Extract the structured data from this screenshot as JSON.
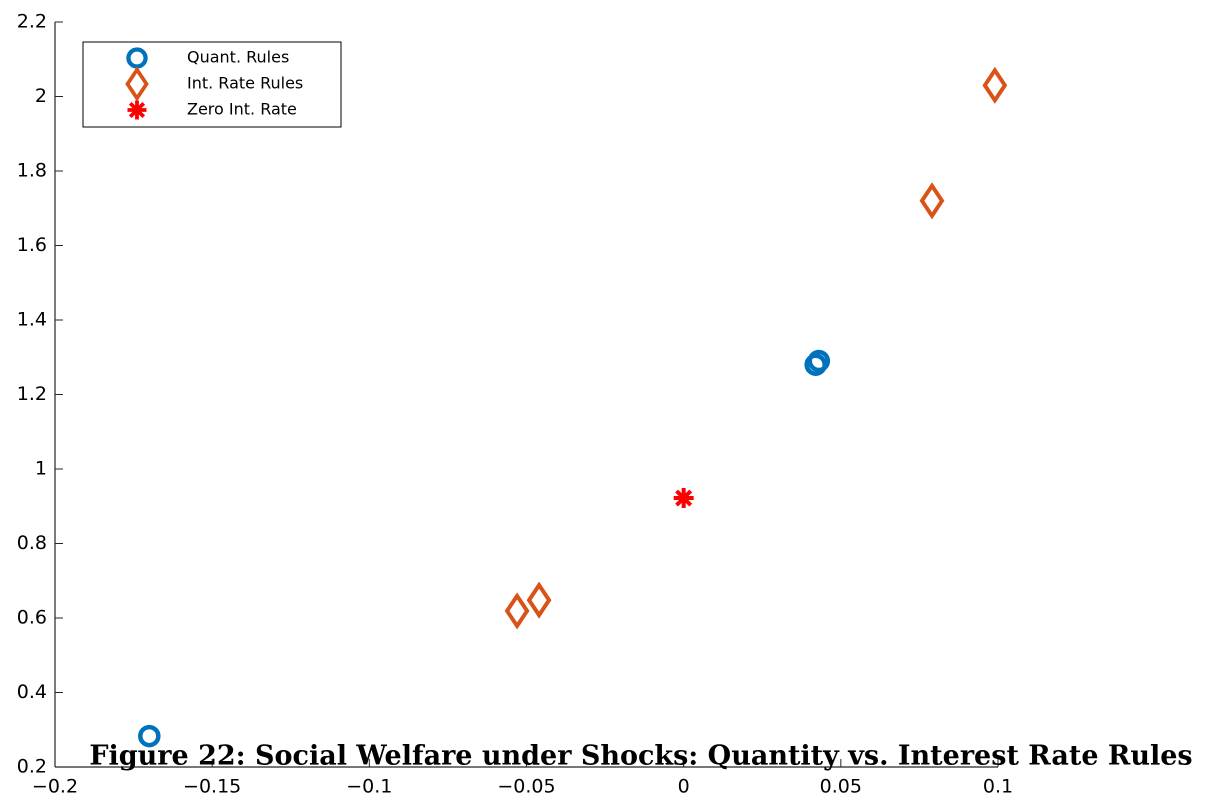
{
  "chart_data": {
    "type": "scatter",
    "caption": "Figure 22: Social Welfare under Shocks: Quantity vs. Interest Rate Rules",
    "xlim": [
      -0.2,
      0.1
    ],
    "xticks": [
      {
        "value": -0.2,
        "label": "−0.2"
      },
      {
        "value": -0.15,
        "label": "−0.15"
      },
      {
        "value": -0.1,
        "label": "−0.1"
      },
      {
        "value": -0.05,
        "label": "−0.05"
      },
      0,
      0.05,
      0.1
    ],
    "ylim": [
      0.2,
      2.2
    ],
    "yticks": [
      0.2,
      0.4,
      0.6,
      0.8,
      1,
      1.2,
      1.4,
      1.6,
      1.8,
      2,
      2.2
    ],
    "legend": "upper left",
    "series": [
      {
        "name": "Quant. Rules",
        "color": "#0072bd",
        "marker": "circle",
        "x": [
          -0.17,
          0.042,
          0.043
        ],
        "values": [
          0.283,
          1.28,
          1.29
        ]
      },
      {
        "name": "Int. Rate Rules",
        "color": "#d95319",
        "marker": "diamond",
        "x": [
          -0.053,
          -0.046,
          0.079,
          0.099
        ],
        "values": [
          0.619,
          0.648,
          1.72,
          2.03
        ]
      },
      {
        "name": "Zero Int. Rate",
        "color": "#ff0000",
        "marker": "asterisk",
        "x": [
          0
        ],
        "values": [
          0.922
        ]
      }
    ]
  }
}
